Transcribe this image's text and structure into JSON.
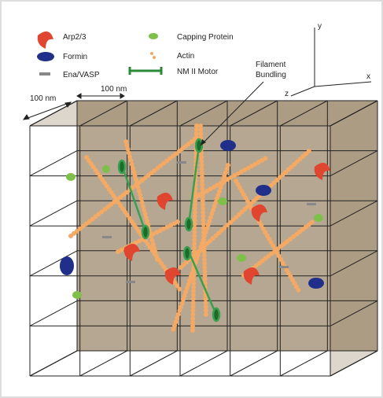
{
  "legend": {
    "items": [
      {
        "label": "Arp2/3"
      },
      {
        "label": "Formin"
      },
      {
        "label": "Ena/VASP"
      },
      {
        "label": "Capping Protein"
      },
      {
        "label": "Actin"
      },
      {
        "label": "NM II Motor"
      }
    ]
  },
  "annotations": {
    "filament_bundling": [
      "Filament",
      "Bundling"
    ],
    "scale_depth": "100 nm",
    "scale_width": "100 nm"
  },
  "axes": {
    "y": "y",
    "x": "x",
    "z": "z"
  }
}
